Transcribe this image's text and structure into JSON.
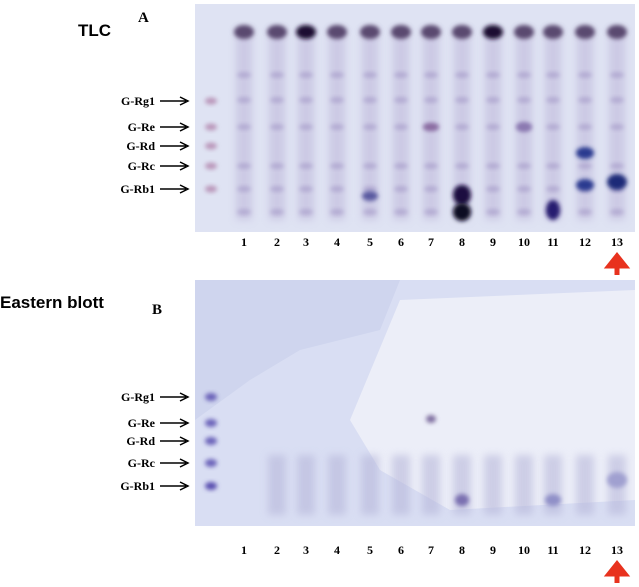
{
  "panels": [
    {
      "title": "TLC",
      "letter": "A",
      "markers": [
        "G-Rg1",
        "G-Re",
        "G-Rd",
        "G-Rc",
        "G-Rb1"
      ],
      "lanes": [
        "1",
        "2",
        "3",
        "4",
        "5",
        "6",
        "7",
        "8",
        "9",
        "10",
        "11",
        "12",
        "13"
      ]
    },
    {
      "title": "Eastern blott",
      "letter": "B",
      "markers": [
        "G-Rg1",
        "G-Re",
        "G-Rd",
        "G-Rc",
        "G-Rb1"
      ],
      "lanes": [
        "1",
        "2",
        "3",
        "4",
        "5",
        "6",
        "7",
        "8",
        "9",
        "10",
        "11",
        "12",
        "13"
      ]
    }
  ]
}
